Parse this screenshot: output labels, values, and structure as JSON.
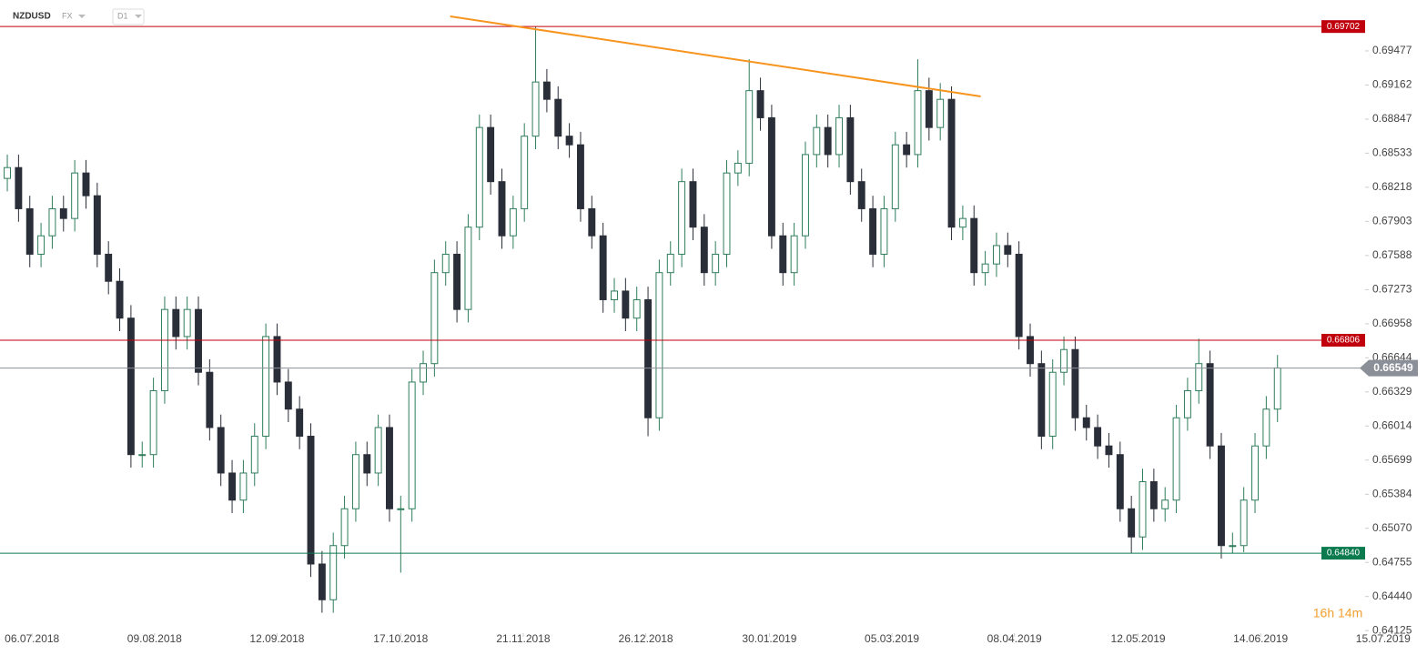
{
  "header": {
    "symbol": "NZDUSD",
    "market": "FX",
    "interval": "D1",
    "countdown": "16h 14m"
  },
  "chart_data": {
    "type": "candlestick",
    "up_color": "#2e7d5b",
    "down_color": "#2a2e39",
    "open": [
      0.683,
      0.684,
      0.6802,
      0.676,
      0.6777,
      0.6802,
      0.6793,
      0.6835,
      0.6814,
      0.676,
      0.6735,
      0.6701,
      0.6575,
      0.6575,
      0.6634,
      0.6709,
      0.6684,
      0.6709,
      0.6651,
      0.66,
      0.6558,
      0.6533,
      0.6558,
      0.6592,
      0.6684,
      0.6642,
      0.6617,
      0.6592,
      0.6474,
      0.6441,
      0.6491,
      0.6525,
      0.6575,
      0.6558,
      0.66,
      0.6525,
      0.6525,
      0.6642,
      0.6659,
      0.6743,
      0.676,
      0.6709,
      0.6785,
      0.6877,
      0.6827,
      0.6777,
      0.6802,
      0.6869,
      0.6919,
      0.6903,
      0.6869,
      0.6861,
      0.6802,
      0.6777,
      0.6718,
      0.6726,
      0.6701,
      0.6718,
      0.6609,
      0.6743,
      0.676,
      0.6827,
      0.6785,
      0.6743,
      0.676,
      0.6835,
      0.6844,
      0.6911,
      0.6886,
      0.6777,
      0.6743,
      0.6777,
      0.6852,
      0.6877,
      0.6852,
      0.6886,
      0.6827,
      0.6802,
      0.676,
      0.6802,
      0.6861,
      0.6852,
      0.6911,
      0.6877,
      0.6903,
      0.6785,
      0.6793,
      0.6743,
      0.6751,
      0.6768,
      0.676,
      0.6684,
      0.6659,
      0.6592,
      0.6651,
      0.6672,
      0.6609,
      0.66,
      0.6583,
      0.6575,
      0.6525,
      0.6499,
      0.655,
      0.6525,
      0.6533,
      0.6609,
      0.6634,
      0.6659,
      0.6583,
      0.6491,
      0.6491,
      0.6533,
      0.6583,
      0.6617
    ],
    "high": [
      0.6852,
      0.6852,
      0.6814,
      0.6789,
      0.6814,
      0.6814,
      0.6847,
      0.6847,
      0.6826,
      0.6772,
      0.6747,
      0.6713,
      0.6587,
      0.6646,
      0.6721,
      0.6721,
      0.6721,
      0.6721,
      0.6663,
      0.6612,
      0.657,
      0.657,
      0.6604,
      0.6696,
      0.6696,
      0.6654,
      0.6629,
      0.6604,
      0.6486,
      0.6503,
      0.6537,
      0.6587,
      0.6587,
      0.6612,
      0.6612,
      0.6537,
      0.6654,
      0.6671,
      0.6755,
      0.6772,
      0.6772,
      0.6797,
      0.6889,
      0.6889,
      0.6839,
      0.6814,
      0.6881,
      0.697,
      0.6931,
      0.6915,
      0.6881,
      0.6873,
      0.6814,
      0.6789,
      0.6738,
      0.6738,
      0.673,
      0.673,
      0.6755,
      0.6772,
      0.6839,
      0.6839,
      0.6797,
      0.6772,
      0.6847,
      0.6856,
      0.694,
      0.6923,
      0.6898,
      0.6789,
      0.6789,
      0.6864,
      0.6889,
      0.6889,
      0.6898,
      0.6898,
      0.6839,
      0.6814,
      0.6814,
      0.6873,
      0.6873,
      0.694,
      0.6923,
      0.6918,
      0.6915,
      0.6805,
      0.6805,
      0.6763,
      0.678,
      0.678,
      0.6772,
      0.6696,
      0.6671,
      0.6663,
      0.6684,
      0.6684,
      0.6621,
      0.6612,
      0.6595,
      0.6587,
      0.6537,
      0.6562,
      0.6562,
      0.6545,
      0.6621,
      0.6646,
      0.6682,
      0.6671,
      0.6595,
      0.6503,
      0.6545,
      0.6595,
      0.6629,
      0.6667
    ],
    "low": [
      0.6818,
      0.679,
      0.6748,
      0.6748,
      0.6765,
      0.6781,
      0.6781,
      0.6802,
      0.6748,
      0.6723,
      0.6689,
      0.6563,
      0.6563,
      0.6563,
      0.6622,
      0.6672,
      0.6672,
      0.6639,
      0.6588,
      0.6546,
      0.6521,
      0.6521,
      0.6546,
      0.658,
      0.663,
      0.6605,
      0.658,
      0.6462,
      0.6429,
      0.6429,
      0.6479,
      0.6513,
      0.6546,
      0.6546,
      0.6513,
      0.6466,
      0.6513,
      0.663,
      0.6647,
      0.6731,
      0.6697,
      0.6697,
      0.6773,
      0.6815,
      0.6765,
      0.6765,
      0.679,
      0.6857,
      0.6891,
      0.6857,
      0.6849,
      0.679,
      0.6765,
      0.6706,
      0.6706,
      0.6689,
      0.6689,
      0.6592,
      0.6597,
      0.6731,
      0.6748,
      0.6773,
      0.6731,
      0.6731,
      0.6748,
      0.6823,
      0.6832,
      0.6874,
      0.6765,
      0.6731,
      0.6731,
      0.6765,
      0.684,
      0.684,
      0.684,
      0.6815,
      0.679,
      0.6748,
      0.6748,
      0.679,
      0.684,
      0.684,
      0.6865,
      0.6865,
      0.6773,
      0.6773,
      0.6731,
      0.6731,
      0.6739,
      0.6748,
      0.6672,
      0.6647,
      0.658,
      0.658,
      0.6639,
      0.6597,
      0.6588,
      0.6571,
      0.6563,
      0.6513,
      0.6484,
      0.6487,
      0.6513,
      0.6513,
      0.6521,
      0.6597,
      0.6622,
      0.6571,
      0.6479,
      0.6484,
      0.6485,
      0.6521,
      0.6571,
      0.6605
    ],
    "close": [
      0.684,
      0.6802,
      0.676,
      0.6777,
      0.6802,
      0.6793,
      0.6835,
      0.6814,
      0.676,
      0.6735,
      0.6701,
      0.6575,
      0.6575,
      0.6634,
      0.6709,
      0.6684,
      0.6709,
      0.6651,
      0.66,
      0.6558,
      0.6533,
      0.6558,
      0.6592,
      0.6684,
      0.6642,
      0.6617,
      0.6592,
      0.6474,
      0.6441,
      0.6491,
      0.6525,
      0.6575,
      0.6558,
      0.66,
      0.6525,
      0.6525,
      0.6642,
      0.6659,
      0.6743,
      0.676,
      0.6709,
      0.6785,
      0.6877,
      0.6827,
      0.6777,
      0.6802,
      0.6869,
      0.6919,
      0.6903,
      0.6869,
      0.6861,
      0.6802,
      0.6777,
      0.6718,
      0.6726,
      0.6701,
      0.6718,
      0.6609,
      0.6743,
      0.676,
      0.6827,
      0.6785,
      0.6743,
      0.676,
      0.6835,
      0.6844,
      0.6911,
      0.6886,
      0.6777,
      0.6743,
      0.6777,
      0.6852,
      0.6877,
      0.6852,
      0.6886,
      0.6827,
      0.6802,
      0.676,
      0.6802,
      0.6861,
      0.6852,
      0.6911,
      0.6877,
      0.6903,
      0.6785,
      0.6793,
      0.6743,
      0.6751,
      0.6768,
      0.676,
      0.6684,
      0.6659,
      0.6592,
      0.6651,
      0.6672,
      0.6609,
      0.66,
      0.6583,
      0.6575,
      0.6525,
      0.6499,
      0.655,
      0.6525,
      0.6533,
      0.6609,
      0.6634,
      0.6659,
      0.6583,
      0.6491,
      0.6491,
      0.6533,
      0.6583,
      0.6617,
      0.6655
    ],
    "xlim": [
      -0.65,
      126.3
    ],
    "xticks": [
      {
        "value": 2.2,
        "label": "06.07.2018"
      },
      {
        "value": 13.1,
        "label": "09.08.2018"
      },
      {
        "value": 24.0,
        "label": "12.09.2018"
      },
      {
        "value": 35.0,
        "label": "17.10.2018"
      },
      {
        "value": 45.9,
        "label": "21.11.2018"
      },
      {
        "value": 56.8,
        "label": "26.12.2018"
      },
      {
        "value": 67.8,
        "label": "30.01.2019"
      },
      {
        "value": 78.7,
        "label": "05.03.2019"
      },
      {
        "value": 89.6,
        "label": "08.04.2019"
      },
      {
        "value": 100.6,
        "label": "12.05.2019"
      },
      {
        "value": 111.5,
        "label": "14.06.2019"
      },
      {
        "value": 122.4,
        "label": "15.07.2019"
      }
    ],
    "ylim": [
      0.69947,
      0.64068
    ],
    "yticks": [
      0.69477,
      0.69162,
      0.68847,
      0.68533,
      0.68218,
      0.67903,
      0.67588,
      0.67273,
      0.66958,
      0.66644,
      0.66329,
      0.66014,
      0.65699,
      0.65384,
      {
        "value": 0.6507,
        "label": "0.65070"
      },
      0.64755,
      {
        "value": 0.6444,
        "label": "0.64440"
      },
      0.64125
    ],
    "levels": [
      {
        "value": 0.69702,
        "color": "#c0000c"
      },
      {
        "value": 0.66806,
        "color": "#c0000c"
      },
      {
        "value": 0.6484,
        "label": "0.64840",
        "color": "#0b7a4f"
      }
    ],
    "current": {
      "value": 0.66549,
      "color": "#8a8f98"
    },
    "trendline": {
      "x": [
        39.4,
        86.6
      ],
      "y": [
        0.69796,
        0.69057
      ],
      "color": "#f7941d"
    }
  }
}
